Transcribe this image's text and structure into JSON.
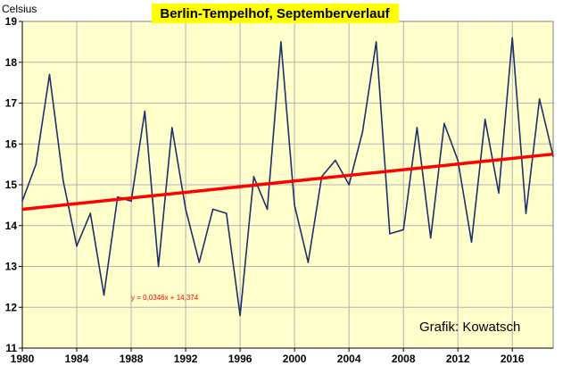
{
  "chart_data": {
    "type": "line",
    "title": "Berlin-Tempelhof, Septemberverlauf",
    "ylabel": "Celsius",
    "xlabel": "",
    "xlim": [
      1980,
      2019
    ],
    "ylim": [
      11,
      19
    ],
    "x_ticks": [
      1980,
      1984,
      1988,
      1992,
      1996,
      2000,
      2004,
      2008,
      2012,
      2016
    ],
    "y_ticks": [
      11,
      12,
      13,
      14,
      15,
      16,
      17,
      18,
      19
    ],
    "grid": true,
    "legend": "none",
    "credit": "Grafik: Kowatsch",
    "series": [
      {
        "x": [
          1980,
          1981,
          1982,
          1983,
          1984,
          1985,
          1986,
          1987,
          1988,
          1989,
          1990,
          1991,
          1992,
          1993,
          1994,
          1995,
          1996,
          1997,
          1998,
          1999,
          2000,
          2001,
          2002,
          2003,
          2004,
          2005,
          2006,
          2007,
          2008,
          2009,
          2010,
          2011,
          2012,
          2013,
          2014,
          2015,
          2016,
          2017,
          2018,
          2019
        ],
        "values": [
          14.6,
          15.5,
          17.7,
          15.1,
          13.5,
          14.3,
          12.3,
          14.7,
          14.6,
          16.8,
          13.0,
          16.4,
          14.4,
          13.1,
          14.4,
          14.3,
          11.8,
          15.2,
          14.4,
          18.5,
          14.5,
          13.1,
          15.2,
          15.6,
          15.0,
          16.3,
          18.5,
          13.8,
          13.9,
          16.4,
          13.7,
          16.5,
          15.6,
          13.6,
          16.6,
          14.8,
          18.6,
          14.3,
          17.1,
          15.7
        ],
        "color": "#1f2f6b"
      }
    ],
    "trendline": {
      "equation": "y = 0,0346x + 14,374",
      "y_start": 14.4,
      "y_end": 15.75,
      "color": "#ff0000"
    },
    "colors": {
      "plot_background": "#ffffcc",
      "title_background": "#ffff00",
      "grid": "#b3b3b3"
    }
  }
}
